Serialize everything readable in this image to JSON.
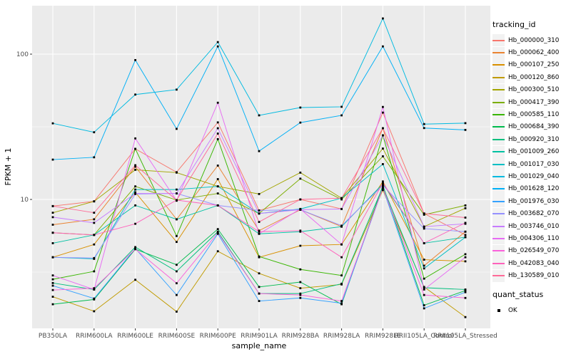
{
  "chart_data": {
    "type": "line",
    "xlabel": "sample_name",
    "ylabel": "FPKM + 1",
    "y_scale": "log10",
    "y_ticks": [
      10,
      100
    ],
    "y_minor_ticks": [
      3.162,
      31.62
    ],
    "ylim": [
      1.3,
      210
    ],
    "grid": true,
    "legend_position": "right",
    "legend_title": "tracking_id",
    "shape_legend": {
      "title": "quant_status",
      "items": [
        {
          "label": "OK",
          "shape": "square",
          "color": "#000000"
        }
      ]
    },
    "point_color": "#000000",
    "panel_background": "#EBEBEB",
    "grid_color": "#FFFFFF",
    "categories": [
      "PB350LA",
      "RRIM600LA",
      "RRIM600LE",
      "RRIM600SE",
      "RRIM600PE",
      "RRIM901LA",
      "RRIM928BA",
      "RRIM928LA",
      "RRIM928LE",
      "RRII105LA_Control",
      "RRII105LA_Stressed"
    ],
    "series": [
      {
        "name": "Hb_000000_310",
        "color": "#F8766D",
        "values": [
          9.0,
          9.7,
          22.3,
          15.4,
          33.9,
          8.4,
          10.0,
          8.6,
          39.6,
          8.0,
          5.7
        ]
      },
      {
        "name": "Hb_000062_400",
        "color": "#EA8331",
        "values": [
          6.7,
          7.3,
          16.8,
          7.3,
          17.1,
          6.1,
          8.5,
          6.5,
          30.9,
          3.5,
          6.0
        ]
      },
      {
        "name": "Hb_000107_250",
        "color": "#D89000",
        "values": [
          4.0,
          4.9,
          11.2,
          5.1,
          13.8,
          4.0,
          4.8,
          4.9,
          13.3,
          3.85,
          3.75
        ]
      },
      {
        "name": "Hb_000120_860",
        "color": "#C09B00",
        "values": [
          2.14,
          1.7,
          2.8,
          1.69,
          4.4,
          3.1,
          2.45,
          2.6,
          11.6,
          2.5,
          1.55
        ]
      },
      {
        "name": "Hb_000300_510",
        "color": "#A3A500",
        "values": [
          8.1,
          9.7,
          16.0,
          15.3,
          12.3,
          10.9,
          15.3,
          10.2,
          22.4,
          6.5,
          8.7
        ]
      },
      {
        "name": "Hb_000417_390",
        "color": "#7CAE00",
        "values": [
          5.9,
          5.7,
          12.3,
          9.9,
          11.0,
          8.0,
          13.9,
          10.0,
          19.8,
          7.85,
          9.1
        ]
      },
      {
        "name": "Hb_000585_110",
        "color": "#39B600",
        "values": [
          2.82,
          3.2,
          22.3,
          5.6,
          26.0,
          4.05,
          3.3,
          3.0,
          27.6,
          2.85,
          4.2
        ]
      },
      {
        "name": "Hb_000684_390",
        "color": "#00BB4E",
        "values": [
          1.9,
          2.05,
          4.55,
          3.55,
          6.25,
          2.5,
          2.7,
          1.9,
          12.5,
          1.87,
          2.36
        ]
      },
      {
        "name": "Hb_000920_310",
        "color": "#00BF7D",
        "values": [
          2.66,
          2.4,
          4.7,
          3.2,
          6.0,
          2.25,
          2.25,
          2.63,
          12.2,
          2.47,
          2.4
        ]
      },
      {
        "name": "Hb_001009_260",
        "color": "#00C1A3",
        "values": [
          5.0,
          5.7,
          9.1,
          7.3,
          9.1,
          5.8,
          6.0,
          6.5,
          12.8,
          5.0,
          5.5
        ]
      },
      {
        "name": "Hb_001017_030",
        "color": "#00BFC4",
        "values": [
          4.0,
          3.9,
          11.7,
          11.7,
          12.3,
          8.0,
          8.6,
          10.2,
          17.5,
          3.35,
          5.5
        ]
      },
      {
        "name": "Hb_001029_040",
        "color": "#00BAE0",
        "values": [
          33.4,
          29.0,
          52.7,
          57.0,
          121.0,
          37.9,
          42.9,
          43.4,
          176.0,
          33.0,
          33.5
        ]
      },
      {
        "name": "Hb_001628_120",
        "color": "#00B0F6",
        "values": [
          18.8,
          19.5,
          91.0,
          30.6,
          113.0,
          21.5,
          33.8,
          37.9,
          113.0,
          31.0,
          30.1
        ]
      },
      {
        "name": "Hb_001976_030",
        "color": "#35A2FF",
        "values": [
          2.55,
          2.08,
          4.6,
          2.2,
          5.8,
          2.0,
          2.1,
          1.93,
          12.0,
          1.78,
          2.3
        ]
      },
      {
        "name": "Hb_003682_070",
        "color": "#9590FF",
        "values": [
          4.0,
          3.95,
          10.9,
          11.0,
          9.1,
          8.4,
          8.5,
          6.6,
          12.5,
          6.3,
          6.0
        ]
      },
      {
        "name": "Hb_003746_010",
        "color": "#C77CFF",
        "values": [
          7.55,
          6.9,
          11.0,
          11.0,
          30.9,
          8.0,
          8.5,
          8.6,
          27.6,
          6.5,
          6.8
        ]
      },
      {
        "name": "Hb_004306_110",
        "color": "#E76BF3",
        "values": [
          3.0,
          2.4,
          26.3,
          9.8,
          46.3,
          5.8,
          8.6,
          4.9,
          43.3,
          2.4,
          4.0
        ]
      },
      {
        "name": "Hb_026549_070",
        "color": "#FA62DB",
        "values": [
          2.38,
          2.45,
          4.55,
          2.65,
          5.9,
          2.25,
          2.2,
          2.0,
          12.0,
          2.2,
          2.1
        ]
      },
      {
        "name": "Hb_042083_040",
        "color": "#FF62BC",
        "values": [
          5.9,
          5.7,
          6.8,
          9.9,
          9.1,
          6.0,
          6.1,
          4.0,
          13.0,
          5.0,
          6.9
        ]
      },
      {
        "name": "Hb_130589_010",
        "color": "#FF6A98",
        "values": [
          9.0,
          8.1,
          17.2,
          9.9,
          28.4,
          7.0,
          10.0,
          10.2,
          30.9,
          8.0,
          7.5
        ]
      }
    ]
  }
}
